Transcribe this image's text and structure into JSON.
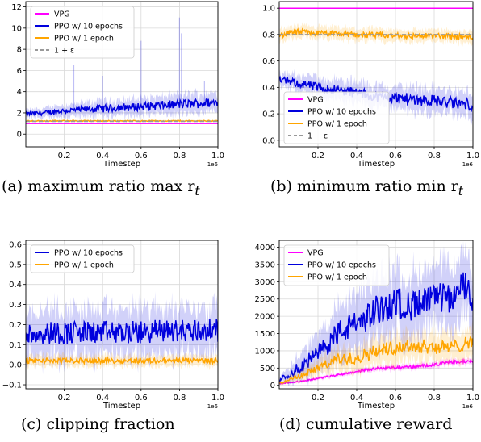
{
  "chart_data": [
    {
      "type": "line",
      "caption": "(a)  maximum ratio max r",
      "caption_subscript": "t",
      "xlabel": "Timestep",
      "x_offset_label": "1e6",
      "xlim": [
        0.0,
        1.0
      ],
      "ylim": [
        -1.2,
        12.5
      ],
      "xticks": [
        0.2,
        0.4,
        0.6,
        0.8,
        1.0
      ],
      "xtick_labels": [
        "0.2",
        "0.4",
        "0.6",
        "0.8",
        "1.0"
      ],
      "yticks": [
        0,
        2,
        4,
        6,
        8,
        10,
        12
      ],
      "ytick_labels": [
        "0",
        "2",
        "4",
        "6",
        "8",
        "10",
        "12"
      ],
      "grid": true,
      "legend": {
        "position": "top-left",
        "entries": [
          "VPG",
          "PPO w/ 10 epochs",
          "PPO w/ 1 epoch",
          "1 + ε"
        ]
      },
      "series": [
        {
          "name": "VPG",
          "color": "#ff00ff",
          "x": [
            0,
            1.0
          ],
          "y": [
            1.0,
            1.0
          ]
        },
        {
          "name": "PPO w/ 10 epochs",
          "color": "#0000dd",
          "x": [
            0,
            0.1,
            0.2,
            0.3,
            0.4,
            0.5,
            0.6,
            0.7,
            0.8,
            0.9,
            1.0
          ],
          "y": [
            1.9,
            2.0,
            2.2,
            2.3,
            2.4,
            2.5,
            2.6,
            2.7,
            2.8,
            2.9,
            3.0
          ],
          "band": [
            0.4,
            0.5,
            0.6,
            0.7,
            0.8,
            0.8,
            0.9,
            0.9,
            1.0,
            1.0,
            1.0
          ],
          "spikes": [
            [
              0.25,
              6.5
            ],
            [
              0.4,
              5.5
            ],
            [
              0.6,
              8.8
            ],
            [
              0.8,
              11.0
            ],
            [
              0.81,
              9.5
            ],
            [
              0.93,
              5.0
            ]
          ]
        },
        {
          "name": "PPO w/ 1 epoch",
          "color": "#ffa500",
          "x": [
            0,
            1.0
          ],
          "y": [
            1.25,
            1.25
          ],
          "band": [
            0.1,
            0.1
          ]
        },
        {
          "name": "1 + ε",
          "color": "#999999",
          "dashed": true,
          "x": [
            0,
            1.0
          ],
          "y": [
            1.2,
            1.2
          ]
        }
      ]
    },
    {
      "type": "line",
      "caption": "(b)  minimum ratio min r",
      "caption_subscript": "t",
      "xlabel": "Timestep",
      "x_offset_label": "1e6",
      "xlim": [
        0.0,
        1.0
      ],
      "ylim": [
        -0.05,
        1.05
      ],
      "xticks": [
        0.2,
        0.4,
        0.6,
        0.8,
        1.0
      ],
      "xtick_labels": [
        "0.2",
        "0.4",
        "0.6",
        "0.8",
        "1.0"
      ],
      "yticks": [
        0.0,
        0.2,
        0.4,
        0.6,
        0.8,
        1.0
      ],
      "ytick_labels": [
        "0.0",
        "0.2",
        "0.4",
        "0.6",
        "0.8",
        "1.0"
      ],
      "grid": true,
      "legend": {
        "position": "lower-left",
        "entries": [
          "VPG",
          "PPO w/ 10 epochs",
          "PPO w/ 1 epoch",
          "1 − ε"
        ]
      },
      "series": [
        {
          "name": "VPG",
          "color": "#ff00ff",
          "x": [
            0,
            1.0
          ],
          "y": [
            1.0,
            1.0
          ]
        },
        {
          "name": "PPO w/ 10 epochs",
          "color": "#0000dd",
          "x": [
            0,
            0.1,
            0.2,
            0.3,
            0.4,
            0.5,
            0.6,
            0.7,
            0.8,
            0.9,
            1.0
          ],
          "y": [
            0.46,
            0.43,
            0.4,
            0.38,
            0.36,
            0.33,
            0.32,
            0.31,
            0.3,
            0.28,
            0.27
          ],
          "band": [
            0.05,
            0.07,
            0.08,
            0.08,
            0.09,
            0.09,
            0.09,
            0.1,
            0.1,
            0.1,
            0.1
          ]
        },
        {
          "name": "PPO w/ 1 epoch",
          "color": "#ffa500",
          "x": [
            0,
            0.05,
            0.1,
            0.2,
            0.4,
            0.6,
            0.8,
            1.0
          ],
          "y": [
            0.79,
            0.81,
            0.82,
            0.81,
            0.8,
            0.79,
            0.79,
            0.78
          ],
          "band": [
            0.05,
            0.05,
            0.05,
            0.05,
            0.05,
            0.05,
            0.05,
            0.05
          ]
        },
        {
          "name": "1 − ε",
          "color": "#999999",
          "dashed": true,
          "x": [
            0,
            1.0
          ],
          "y": [
            0.8,
            0.8
          ]
        }
      ]
    },
    {
      "type": "line",
      "caption": "(c)  clipping fraction",
      "xlabel": "Timestep",
      "x_offset_label": "1e6",
      "xlim": [
        0.0,
        1.0
      ],
      "ylim": [
        -0.12,
        0.62
      ],
      "xticks": [
        0.2,
        0.4,
        0.6,
        0.8,
        1.0
      ],
      "xtick_labels": [
        "0.2",
        "0.4",
        "0.6",
        "0.8",
        "1.0"
      ],
      "yticks": [
        -0.1,
        0.0,
        0.1,
        0.2,
        0.3,
        0.4,
        0.5,
        0.6
      ],
      "ytick_labels": [
        "−0.1",
        "0.0",
        "0.1",
        "0.2",
        "0.3",
        "0.4",
        "0.5",
        "0.6"
      ],
      "grid": true,
      "legend": {
        "position": "top-left",
        "entries": [
          "PPO w/ 10 epochs",
          "PPO w/ 1 epoch"
        ]
      },
      "series": [
        {
          "name": "PPO w/ 10 epochs",
          "color": "#0000dd",
          "x": [
            0,
            0.1,
            0.2,
            0.3,
            0.4,
            0.5,
            0.6,
            0.7,
            0.8,
            0.9,
            1.0
          ],
          "y": [
            0.15,
            0.16,
            0.16,
            0.16,
            0.16,
            0.16,
            0.16,
            0.17,
            0.17,
            0.17,
            0.17
          ],
          "band": [
            0.13,
            0.13,
            0.13,
            0.13,
            0.13,
            0.13,
            0.13,
            0.13,
            0.13,
            0.13,
            0.13
          ]
        },
        {
          "name": "PPO w/ 1 epoch",
          "color": "#ffa500",
          "x": [
            0,
            1.0
          ],
          "y": [
            0.02,
            0.02
          ],
          "band": [
            0.03,
            0.03
          ]
        }
      ]
    },
    {
      "type": "line",
      "caption": "(d)  cumulative reward",
      "xlabel": "Timestep",
      "x_offset_label": "1e6",
      "xlim": [
        0.0,
        1.0
      ],
      "ylim": [
        -100,
        4200
      ],
      "xticks": [
        0.2,
        0.4,
        0.6,
        0.8,
        1.0
      ],
      "xtick_labels": [
        "0.2",
        "0.4",
        "0.6",
        "0.8",
        "1.0"
      ],
      "yticks": [
        0,
        500,
        1000,
        1500,
        2000,
        2500,
        3000,
        3500,
        4000
      ],
      "ytick_labels": [
        "0",
        "500",
        "1000",
        "1500",
        "2000",
        "2500",
        "3000",
        "3500",
        "4000"
      ],
      "grid": true,
      "legend": {
        "position": "top-left",
        "entries": [
          "VPG",
          "PPO w/ 10 epochs",
          "PPO w/ 1 epoch"
        ]
      },
      "series": [
        {
          "name": "VPG",
          "color": "#ff00ff",
          "x": [
            0,
            0.1,
            0.2,
            0.3,
            0.4,
            0.5,
            0.6,
            0.7,
            0.8,
            0.9,
            1.0
          ],
          "y": [
            50,
            110,
            200,
            300,
            400,
            490,
            510,
            540,
            600,
            680,
            700
          ],
          "band": [
            30,
            40,
            50,
            60,
            70,
            80,
            90,
            90,
            100,
            100,
            100
          ]
        },
        {
          "name": "PPO w/ 10 epochs",
          "color": "#0000dd",
          "x": [
            0,
            0.1,
            0.2,
            0.3,
            0.4,
            0.5,
            0.6,
            0.7,
            0.8,
            0.9,
            0.95,
            1.0
          ],
          "y": [
            150,
            500,
            900,
            1500,
            1800,
            2150,
            2400,
            2300,
            2500,
            2550,
            2900,
            2500
          ],
          "band": [
            100,
            400,
            600,
            800,
            900,
            1000,
            1000,
            1000,
            1000,
            1000,
            1000,
            1000
          ]
        },
        {
          "name": "PPO w/ 1 epoch",
          "color": "#ffa500",
          "x": [
            0,
            0.1,
            0.2,
            0.3,
            0.4,
            0.5,
            0.6,
            0.7,
            0.8,
            0.9,
            1.0
          ],
          "y": [
            60,
            250,
            500,
            750,
            800,
            1000,
            1100,
            1150,
            1100,
            1100,
            1300
          ],
          "band": [
            50,
            150,
            250,
            350,
            400,
            450,
            450,
            450,
            450,
            450,
            450
          ]
        }
      ]
    }
  ]
}
